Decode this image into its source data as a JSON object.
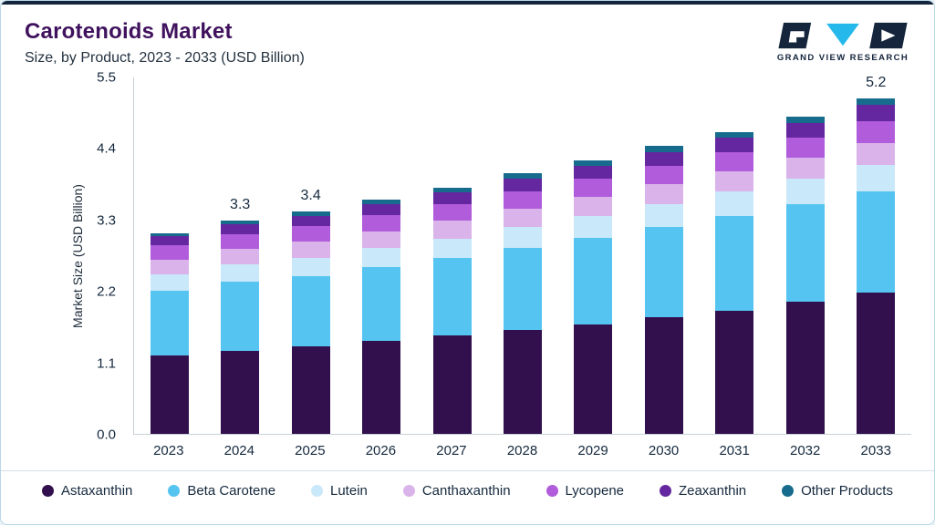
{
  "header": {
    "title": "Carotenoids Market",
    "subtitle": "Size, by Product, 2023 - 2033 (USD Billion)",
    "logo_text": "GRAND VIEW RESEARCH"
  },
  "chart_data": {
    "type": "bar",
    "stacked": true,
    "title": "Carotenoids Market Size, by Product, 2023 - 2033 (USD Billion)",
    "xlabel": "",
    "ylabel": "Market Size (USD Billion)",
    "ylim": [
      0,
      5.5
    ],
    "y_ticks": [
      "0.0",
      "1.1",
      "2.2",
      "3.3",
      "4.4",
      "5.5"
    ],
    "grid": false,
    "legend_position": "bottom",
    "categories": [
      "2023",
      "2024",
      "2025",
      "2026",
      "2027",
      "2028",
      "2029",
      "2030",
      "2031",
      "2032",
      "2033"
    ],
    "bar_labels": [
      "",
      "3.3",
      "3.4",
      "",
      "",
      "",
      "",
      "",
      "",
      "",
      "5.2"
    ],
    "series": [
      {
        "name": "Astaxanthin",
        "color": "#31104d",
        "values": [
          1.21,
          1.28,
          1.35,
          1.43,
          1.51,
          1.6,
          1.69,
          1.79,
          1.9,
          2.03,
          2.17
        ]
      },
      {
        "name": "Beta Carotene",
        "color": "#55c4f0",
        "values": [
          0.99,
          1.07,
          1.08,
          1.14,
          1.2,
          1.27,
          1.33,
          1.4,
          1.46,
          1.51,
          1.56
        ]
      },
      {
        "name": "Lutein",
        "color": "#c9e8fa",
        "values": [
          0.25,
          0.26,
          0.28,
          0.29,
          0.3,
          0.32,
          0.34,
          0.35,
          0.37,
          0.39,
          0.41
        ]
      },
      {
        "name": "Canthaxanthin",
        "color": "#d9b3ea",
        "values": [
          0.23,
          0.24,
          0.25,
          0.26,
          0.27,
          0.28,
          0.29,
          0.3,
          0.31,
          0.32,
          0.34
        ]
      },
      {
        "name": "Lycopene",
        "color": "#b15cdb",
        "values": [
          0.22,
          0.23,
          0.24,
          0.25,
          0.26,
          0.27,
          0.28,
          0.29,
          0.3,
          0.31,
          0.33
        ]
      },
      {
        "name": "Zeaxanthin",
        "color": "#6527a0",
        "values": [
          0.14,
          0.15,
          0.16,
          0.17,
          0.18,
          0.19,
          0.2,
          0.21,
          0.22,
          0.23,
          0.25
        ]
      },
      {
        "name": "Other Products",
        "color": "#176b8d",
        "values": [
          0.05,
          0.06,
          0.06,
          0.07,
          0.07,
          0.08,
          0.08,
          0.09,
          0.09,
          0.1,
          0.11
        ]
      }
    ]
  }
}
